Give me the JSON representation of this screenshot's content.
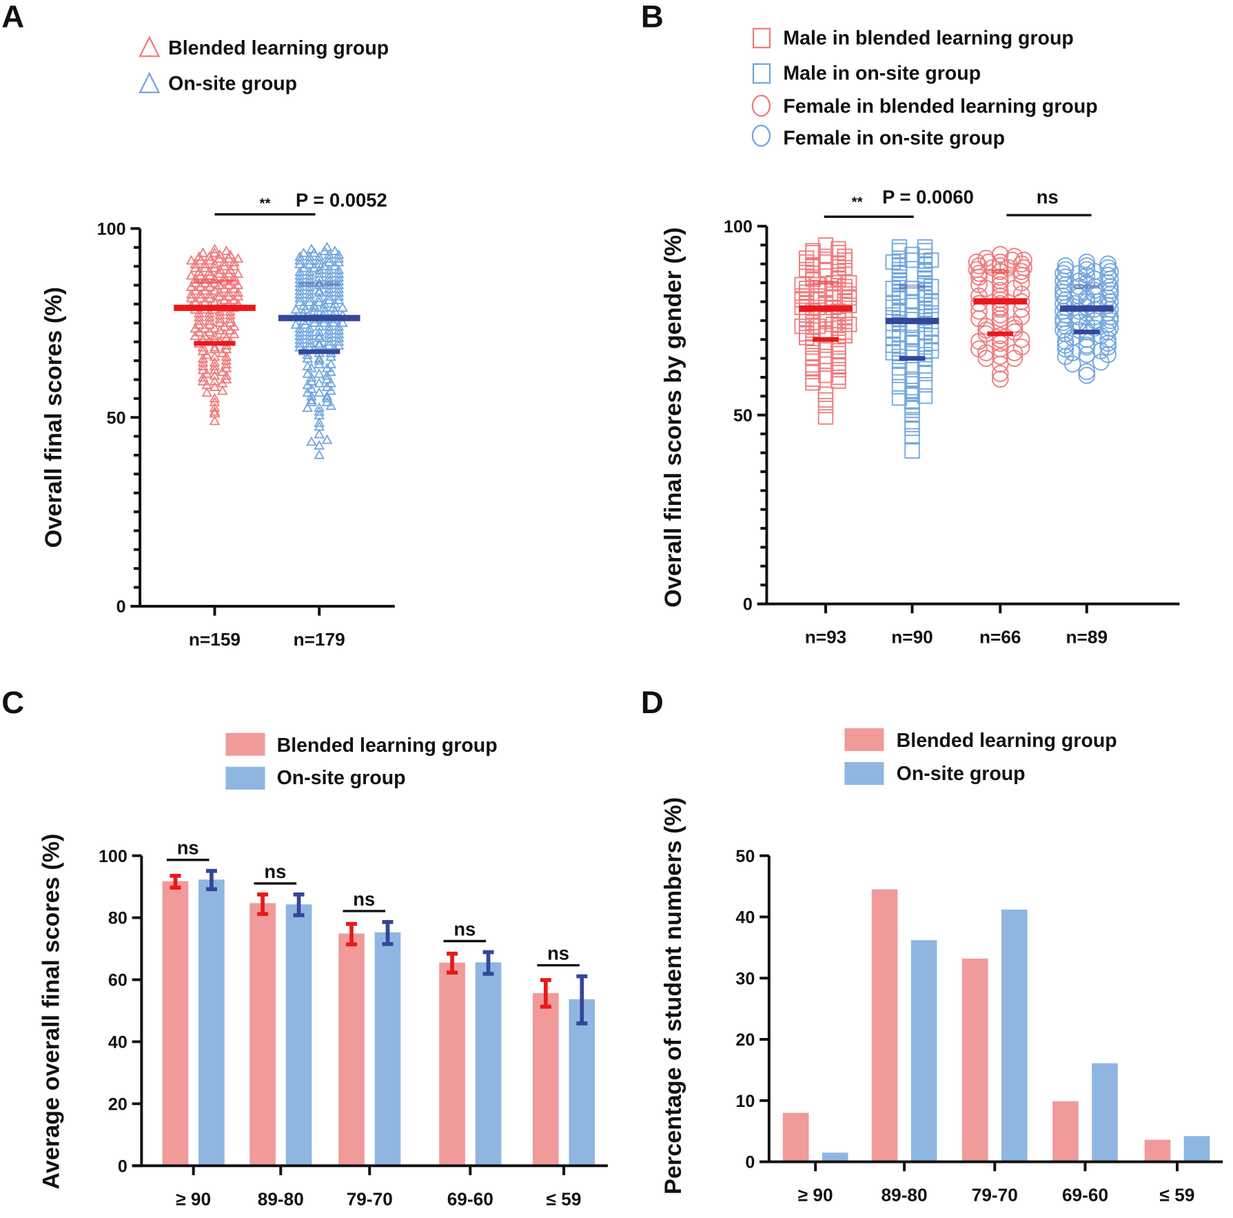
{
  "figure": {
    "panels": [
      "A",
      "B",
      "C",
      "D"
    ]
  },
  "colors": {
    "blended_marker": "#ee7b7e",
    "onsite_marker": "#72a6de",
    "blended_bar": "#f09a9a",
    "onsite_bar": "#8fb6e1",
    "blended_summary": "#e8191b",
    "onsite_summary": "#33479a"
  },
  "chart_data": [
    {
      "panel": "A",
      "type": "scatter",
      "title": "",
      "ylabel": "Overall final scores (%)",
      "xlabel": "",
      "ylim": [
        0,
        100
      ],
      "yticks_major": [
        0,
        50,
        100
      ],
      "yticks_minor_step": 5,
      "legend": [
        {
          "label": "Blended learning group",
          "marker": "triangle",
          "color": "#ee7b7e"
        },
        {
          "label": "On-site group",
          "marker": "triangle",
          "color": "#72a6de"
        }
      ],
      "legend_position": "top",
      "categories": [
        "n=159",
        "n=179"
      ],
      "series": [
        {
          "name": "Blended learning group",
          "n": 159,
          "median": 79,
          "q1": 69.6,
          "q3": 86,
          "min": 48.7,
          "max": 94.5,
          "marker": "triangle"
        },
        {
          "name": "On-site group",
          "n": 179,
          "median": 76.3,
          "q1": 67.4,
          "q3": 85.3,
          "min": 39.7,
          "max": 94.9,
          "marker": "triangle"
        }
      ],
      "annotations": [
        {
          "between": [
            0,
            1
          ],
          "stars": "**",
          "text": "P = 0.0052"
        }
      ]
    },
    {
      "panel": "B",
      "type": "scatter",
      "title": "",
      "ylabel": "Overall final scores by gender (%)",
      "xlabel": "",
      "ylim": [
        0,
        100
      ],
      "yticks_major": [
        0,
        50,
        100
      ],
      "yticks_minor_step": 5,
      "legend": [
        {
          "label": "Male in blended learning group",
          "marker": "square",
          "color": "#ee7b7e"
        },
        {
          "label": "Male in on-site group",
          "marker": "square",
          "color": "#72a6de"
        },
        {
          "label": "Female in blended learning group",
          "marker": "circle",
          "color": "#ee7b7e"
        },
        {
          "label": "Female in on-site group",
          "marker": "circle",
          "color": "#72a6de"
        }
      ],
      "legend_position": "top",
      "categories": [
        "n=93",
        "n=90",
        "n=66",
        "n=89"
      ],
      "series": [
        {
          "name": "Male in blended learning group",
          "n": 93,
          "median": 78.2,
          "q1": 70,
          "q3": 85,
          "min": 49,
          "max": 95,
          "marker": "square"
        },
        {
          "name": "Male in on-site group",
          "n": 90,
          "median": 74.9,
          "q1": 65,
          "q3": 84,
          "min": 40,
          "max": 95,
          "marker": "square"
        },
        {
          "name": "Female in blended learning group",
          "n": 66,
          "median": 80.1,
          "q1": 71.5,
          "q3": 88,
          "min": 59,
          "max": 93,
          "marker": "circle"
        },
        {
          "name": "Female in on-site group",
          "n": 89,
          "median": 78.2,
          "q1": 72,
          "q3": 84,
          "min": 60,
          "max": 91,
          "marker": "circle"
        }
      ],
      "annotations": [
        {
          "between": [
            0,
            1
          ],
          "stars": "**",
          "text": "P = 0.0060"
        },
        {
          "between": [
            2,
            3
          ],
          "stars": "",
          "text": "ns"
        }
      ]
    },
    {
      "panel": "C",
      "type": "bar",
      "title": "",
      "ylabel": "Average overall final scores (%)",
      "xlabel": "",
      "ylim": [
        0,
        100
      ],
      "yticks": [
        0,
        20,
        40,
        60,
        80,
        100
      ],
      "legend": [
        {
          "label": "Blended learning group",
          "color": "#f09a9a"
        },
        {
          "label": "On-site group",
          "color": "#8fb6e1"
        }
      ],
      "legend_position": "top",
      "categories": [
        "≥ 90",
        "89-80",
        "79-70",
        "69-60",
        "≤ 59"
      ],
      "series": [
        {
          "name": "Blended learning group",
          "values": [
            91.8,
            84.7,
            74.9,
            65.5,
            55.7
          ],
          "err_low": [
            89.7,
            81.2,
            71.4,
            62.3,
            51.3
          ],
          "err_high": [
            93.5,
            87.5,
            78.0,
            68.4,
            59.9
          ]
        },
        {
          "name": "On-site group",
          "values": [
            92.3,
            84.3,
            75.3,
            65.6,
            53.7
          ],
          "err_low": [
            89.2,
            80.8,
            71.5,
            61.9,
            45.9
          ],
          "err_high": [
            95.1,
            87.5,
            78.6,
            68.9,
            61.1
          ]
        }
      ],
      "annotations": [
        {
          "category": 0,
          "text": "ns"
        },
        {
          "category": 1,
          "text": "ns"
        },
        {
          "category": 2,
          "text": "ns"
        },
        {
          "category": 3,
          "text": "ns"
        },
        {
          "category": 4,
          "text": "ns"
        }
      ]
    },
    {
      "panel": "D",
      "type": "bar",
      "title": "",
      "ylabel": "Percentage of student numbers (%)",
      "xlabel": "",
      "ylim": [
        0,
        50
      ],
      "yticks": [
        0,
        10,
        20,
        30,
        40,
        50
      ],
      "legend": [
        {
          "label": "Blended learning group",
          "color": "#f09a9a"
        },
        {
          "label": "On-site group",
          "color": "#8fb6e1"
        }
      ],
      "legend_position": "top",
      "categories": [
        "≥ 90",
        "89-80",
        "79-70",
        "69-60",
        "≤ 59"
      ],
      "series": [
        {
          "name": "Blended learning group",
          "values": [
            8.0,
            44.5,
            33.2,
            9.9,
            3.6
          ]
        },
        {
          "name": "On-site group",
          "values": [
            1.5,
            36.2,
            41.2,
            16.1,
            4.2
          ]
        }
      ]
    }
  ]
}
